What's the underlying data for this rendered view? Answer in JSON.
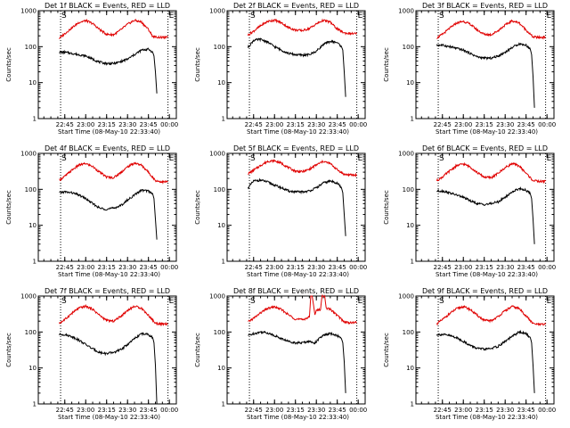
{
  "chart_data": [
    {
      "type": "line",
      "title": "Det 1f BLACK = Events, RED = LLD",
      "ylabel": "Counts/sec",
      "xlabel": "Start Time (08-May-10 22:33:40)",
      "x_ticks": [
        "22:45",
        "23:00",
        "23:15",
        "23:30",
        "23:45",
        "00:00"
      ],
      "y_ticks": [
        "1",
        "10",
        "100",
        "1000"
      ],
      "ylim": [
        1,
        1000
      ],
      "y_scale": "log",
      "markers": [
        "S",
        "E"
      ],
      "colors": {
        "events": "#000000",
        "lld": "#e00000"
      },
      "series": [
        {
          "key": "lld",
          "x": [
            "22:41",
            "22:45",
            "22:50",
            "22:55",
            "23:00",
            "23:05",
            "23:10",
            "23:15",
            "23:20",
            "23:25",
            "23:30",
            "23:35",
            "23:40",
            "23:45",
            "23:48",
            "23:50",
            "23:55",
            "23:59"
          ],
          "values": [
            170,
            230,
            330,
            470,
            530,
            440,
            300,
            220,
            215,
            290,
            420,
            540,
            480,
            300,
            195,
            185,
            180,
            182
          ]
        },
        {
          "key": "events",
          "x": [
            "22:41",
            "22:45",
            "22:50",
            "22:55",
            "23:00",
            "23:05",
            "23:10",
            "23:15",
            "23:20",
            "23:25",
            "23:30",
            "23:35",
            "23:40",
            "23:45",
            "23:48",
            "23:49",
            "23:50",
            "23:51"
          ],
          "values": [
            70,
            70,
            65,
            60,
            55,
            45,
            37,
            34,
            34,
            38,
            45,
            60,
            80,
            85,
            70,
            55,
            20,
            5
          ]
        }
      ]
    },
    {
      "type": "line",
      "title": "Det 2f BLACK = Events, RED = LLD",
      "ylabel": "Counts/sec",
      "xlabel": "Start Time (08-May-10 22:33:40)",
      "x_ticks": [
        "22:45",
        "23:00",
        "23:15",
        "23:30",
        "23:45",
        "00:00"
      ],
      "y_ticks": [
        "1",
        "10",
        "100",
        "1000"
      ],
      "ylim": [
        1,
        1000
      ],
      "y_scale": "log",
      "markers": [
        "S",
        "E"
      ],
      "colors": {
        "events": "#000000",
        "lld": "#e00000"
      },
      "series": [
        {
          "key": "lld",
          "x": [
            "22:41",
            "22:45",
            "22:50",
            "22:55",
            "23:00",
            "23:05",
            "23:10",
            "23:15",
            "23:20",
            "23:25",
            "23:30",
            "23:35",
            "23:40",
            "23:45",
            "23:50",
            "23:55",
            "23:59"
          ],
          "values": [
            210,
            270,
            380,
            500,
            550,
            460,
            340,
            290,
            280,
            320,
            430,
            540,
            480,
            310,
            240,
            230,
            230
          ]
        },
        {
          "key": "events",
          "x": [
            "22:41",
            "22:45",
            "22:50",
            "22:55",
            "23:00",
            "23:05",
            "23:10",
            "23:15",
            "23:20",
            "23:25",
            "23:30",
            "23:35",
            "23:40",
            "23:45",
            "23:48",
            "23:49",
            "23:50",
            "23:51"
          ],
          "values": [
            95,
            150,
            160,
            135,
            100,
            80,
            65,
            60,
            58,
            60,
            75,
            115,
            140,
            130,
            100,
            80,
            20,
            4
          ]
        }
      ]
    },
    {
      "type": "line",
      "title": "Det 3f BLACK = Events, RED = LLD",
      "ylabel": "Counts/sec",
      "xlabel": "Start Time (08-May-10 22:33:40)",
      "x_ticks": [
        "22:45",
        "23:00",
        "23:15",
        "23:30",
        "23:45",
        "00:00"
      ],
      "y_ticks": [
        "1",
        "10",
        "100",
        "1000"
      ],
      "ylim": [
        1,
        1000
      ],
      "y_scale": "log",
      "markers": [
        "S",
        "E"
      ],
      "colors": {
        "events": "#000000",
        "lld": "#e00000"
      },
      "series": [
        {
          "key": "lld",
          "x": [
            "22:41",
            "22:45",
            "22:50",
            "22:55",
            "23:00",
            "23:05",
            "23:10",
            "23:15",
            "23:20",
            "23:25",
            "23:30",
            "23:35",
            "23:40",
            "23:45",
            "23:50",
            "23:55",
            "23:59"
          ],
          "values": [
            175,
            220,
            320,
            450,
            510,
            420,
            290,
            220,
            215,
            280,
            400,
            520,
            460,
            290,
            185,
            180,
            185
          ]
        },
        {
          "key": "events",
          "x": [
            "22:41",
            "22:45",
            "22:50",
            "22:55",
            "23:00",
            "23:05",
            "23:10",
            "23:15",
            "23:20",
            "23:25",
            "23:30",
            "23:35",
            "23:40",
            "23:45",
            "23:48",
            "23:49",
            "23:50",
            "23:51"
          ],
          "values": [
            110,
            110,
            100,
            90,
            80,
            65,
            52,
            48,
            48,
            55,
            70,
            95,
            120,
            110,
            85,
            60,
            15,
            2
          ]
        }
      ]
    },
    {
      "type": "line",
      "title": "Det 4f BLACK = Events, RED = LLD",
      "ylabel": "Counts/sec",
      "xlabel": "Start Time (08-May-10 22:33:40)",
      "x_ticks": [
        "22:45",
        "23:00",
        "23:15",
        "23:30",
        "23:45",
        "00:00"
      ],
      "y_ticks": [
        "1",
        "10",
        "100",
        "1000"
      ],
      "ylim": [
        1,
        1000
      ],
      "y_scale": "log",
      "markers": [
        "S",
        "E"
      ],
      "colors": {
        "events": "#000000",
        "lld": "#e00000"
      },
      "series": [
        {
          "key": "lld",
          "x": [
            "22:41",
            "22:45",
            "22:50",
            "22:55",
            "23:00",
            "23:05",
            "23:10",
            "23:15",
            "23:20",
            "23:25",
            "23:30",
            "23:35",
            "23:40",
            "23:45",
            "23:50",
            "23:55",
            "23:59"
          ],
          "values": [
            180,
            230,
            340,
            470,
            520,
            430,
            300,
            220,
            210,
            290,
            420,
            540,
            470,
            300,
            175,
            160,
            165
          ]
        },
        {
          "key": "events",
          "x": [
            "22:41",
            "22:45",
            "22:50",
            "22:55",
            "23:00",
            "23:05",
            "23:10",
            "23:15",
            "23:20",
            "23:25",
            "23:30",
            "23:35",
            "23:40",
            "23:45",
            "23:48",
            "23:49",
            "23:50",
            "23:51"
          ],
          "values": [
            80,
            85,
            80,
            70,
            55,
            40,
            30,
            28,
            30,
            35,
            50,
            70,
            95,
            90,
            75,
            55,
            15,
            4
          ]
        }
      ]
    },
    {
      "type": "line",
      "title": "Det 5f BLACK = Events, RED = LLD",
      "ylabel": "Counts/sec",
      "xlabel": "Start Time (08-May-10 22:33:40)",
      "x_ticks": [
        "22:45",
        "23:00",
        "23:15",
        "23:30",
        "23:45",
        "00:00"
      ],
      "y_ticks": [
        "1",
        "10",
        "100",
        "1000"
      ],
      "ylim": [
        1,
        1000
      ],
      "y_scale": "log",
      "markers": [
        "S",
        "E"
      ],
      "colors": {
        "events": "#000000",
        "lld": "#e00000"
      },
      "series": [
        {
          "key": "lld",
          "x": [
            "22:41",
            "22:45",
            "22:50",
            "22:55",
            "23:00",
            "23:05",
            "23:10",
            "23:15",
            "23:20",
            "23:25",
            "23:30",
            "23:35",
            "23:40",
            "23:45",
            "23:50",
            "23:55",
            "23:59"
          ],
          "values": [
            270,
            340,
            460,
            600,
            620,
            530,
            400,
            320,
            310,
            360,
            480,
            600,
            520,
            350,
            260,
            250,
            250
          ]
        },
        {
          "key": "events",
          "x": [
            "22:41",
            "22:45",
            "22:50",
            "22:55",
            "23:00",
            "23:05",
            "23:10",
            "23:15",
            "23:20",
            "23:25",
            "23:30",
            "23:35",
            "23:40",
            "23:45",
            "23:48",
            "23:49",
            "23:50",
            "23:51"
          ],
          "values": [
            110,
            170,
            180,
            160,
            130,
            110,
            90,
            85,
            85,
            90,
            110,
            150,
            170,
            150,
            110,
            80,
            20,
            5
          ]
        }
      ]
    },
    {
      "type": "line",
      "title": "Det 6f BLACK = Events, RED = LLD",
      "ylabel": "Counts/sec",
      "xlabel": "Start Time (08-May-10 22:33:40)",
      "x_ticks": [
        "22:45",
        "23:00",
        "23:15",
        "23:30",
        "23:45",
        "00:00"
      ],
      "y_ticks": [
        "1",
        "10",
        "100",
        "1000"
      ],
      "ylim": [
        1,
        1000
      ],
      "y_scale": "log",
      "markers": [
        "S",
        "E"
      ],
      "colors": {
        "events": "#000000",
        "lld": "#e00000"
      },
      "series": [
        {
          "key": "lld",
          "x": [
            "22:41",
            "22:45",
            "22:50",
            "22:55",
            "23:00",
            "23:05",
            "23:10",
            "23:15",
            "23:20",
            "23:25",
            "23:30",
            "23:35",
            "23:40",
            "23:45",
            "23:50",
            "23:55",
            "23:59"
          ],
          "values": [
            175,
            220,
            320,
            450,
            510,
            420,
            290,
            220,
            210,
            280,
            400,
            520,
            450,
            280,
            175,
            165,
            170
          ]
        },
        {
          "key": "events",
          "x": [
            "22:41",
            "22:45",
            "22:50",
            "22:55",
            "23:00",
            "23:05",
            "23:10",
            "23:15",
            "23:20",
            "23:25",
            "23:30",
            "23:35",
            "23:40",
            "23:45",
            "23:48",
            "23:49",
            "23:50",
            "23:51"
          ],
          "values": [
            90,
            90,
            80,
            70,
            60,
            48,
            40,
            38,
            40,
            45,
            60,
            85,
            105,
            95,
            75,
            55,
            15,
            3
          ]
        }
      ]
    },
    {
      "type": "line",
      "title": "Det 7f BLACK = Events, RED = LLD",
      "ylabel": "Counts/sec",
      "xlabel": "Start Time (08-May-10 22:33:40)",
      "x_ticks": [
        "22:45",
        "23:00",
        "23:15",
        "23:30",
        "23:45",
        "00:00"
      ],
      "y_ticks": [
        "1",
        "10",
        "100",
        "1000"
      ],
      "ylim": [
        1,
        1000
      ],
      "y_scale": "log",
      "markers": [
        "S",
        "E"
      ],
      "colors": {
        "events": "#000000",
        "lld": "#e00000"
      },
      "series": [
        {
          "key": "lld",
          "x": [
            "22:41",
            "22:45",
            "22:50",
            "22:55",
            "23:00",
            "23:05",
            "23:10",
            "23:15",
            "23:20",
            "23:25",
            "23:30",
            "23:35",
            "23:40",
            "23:45",
            "23:50",
            "23:55",
            "23:59"
          ],
          "values": [
            175,
            220,
            330,
            460,
            520,
            430,
            290,
            210,
            200,
            270,
            400,
            520,
            460,
            290,
            175,
            165,
            170
          ]
        },
        {
          "key": "events",
          "x": [
            "22:41",
            "22:45",
            "22:50",
            "22:55",
            "23:00",
            "23:05",
            "23:10",
            "23:15",
            "23:20",
            "23:25",
            "23:30",
            "23:35",
            "23:40",
            "23:45",
            "23:48",
            "23:49",
            "23:50",
            "23:51"
          ],
          "values": [
            85,
            85,
            75,
            60,
            45,
            34,
            27,
            25,
            27,
            32,
            45,
            65,
            90,
            85,
            70,
            50,
            12,
            1
          ]
        }
      ]
    },
    {
      "type": "line",
      "title": "Det 8f BLACK = Events, RED = LLD",
      "ylabel": "Counts/sec",
      "xlabel": "Start Time (08-May-10 22:33:40)",
      "x_ticks": [
        "22:45",
        "23:00",
        "23:15",
        "23:30",
        "23:45",
        "00:00"
      ],
      "y_ticks": [
        "1",
        "10",
        "100",
        "1000"
      ],
      "ylim": [
        1,
        1000
      ],
      "y_scale": "log",
      "markers": [
        "S",
        "E"
      ],
      "colors": {
        "events": "#000000",
        "lld": "#e00000"
      },
      "series": [
        {
          "key": "lld",
          "x": [
            "22:41",
            "22:45",
            "22:50",
            "22:55",
            "23:00",
            "23:05",
            "23:10",
            "23:15",
            "23:20",
            "23:25",
            "23:26",
            "23:27",
            "23:29",
            "23:30",
            "23:33",
            "23:34",
            "23:36",
            "23:37",
            "23:40",
            "23:45",
            "23:50",
            "23:55",
            "23:59"
          ],
          "values": [
            190,
            240,
            340,
            450,
            500,
            420,
            300,
            230,
            220,
            260,
            1000,
            1000,
            300,
            400,
            420,
            1000,
            1000,
            450,
            430,
            290,
            190,
            180,
            185
          ]
        },
        {
          "key": "events",
          "x": [
            "22:41",
            "22:45",
            "22:50",
            "22:55",
            "23:00",
            "23:05",
            "23:10",
            "23:15",
            "23:20",
            "23:24",
            "23:29",
            "23:32",
            "23:35",
            "23:40",
            "23:45",
            "23:48",
            "23:49",
            "23:50",
            "23:51"
          ],
          "values": [
            80,
            90,
            100,
            95,
            80,
            65,
            55,
            50,
            50,
            55,
            50,
            65,
            80,
            90,
            80,
            65,
            50,
            15,
            2
          ]
        }
      ]
    },
    {
      "type": "line",
      "title": "Det 9f BLACK = Events, RED = LLD",
      "ylabel": "Counts/sec",
      "xlabel": "Start Time (08-May-10 22:33:40)",
      "x_ticks": [
        "22:45",
        "23:00",
        "23:15",
        "23:30",
        "23:45",
        "00:00"
      ],
      "y_ticks": [
        "1",
        "10",
        "100",
        "1000"
      ],
      "ylim": [
        1,
        1000
      ],
      "y_scale": "log",
      "markers": [
        "S",
        "E"
      ],
      "colors": {
        "events": "#000000",
        "lld": "#e00000"
      },
      "series": [
        {
          "key": "lld",
          "x": [
            "22:41",
            "22:45",
            "22:50",
            "22:55",
            "23:00",
            "23:05",
            "23:10",
            "23:15",
            "23:20",
            "23:25",
            "23:30",
            "23:35",
            "23:40",
            "23:45",
            "23:50",
            "23:55",
            "23:59"
          ],
          "values": [
            170,
            220,
            320,
            440,
            510,
            420,
            290,
            210,
            205,
            270,
            390,
            510,
            450,
            280,
            170,
            160,
            165
          ]
        },
        {
          "key": "events",
          "x": [
            "22:41",
            "22:45",
            "22:50",
            "22:55",
            "23:00",
            "23:05",
            "23:10",
            "23:15",
            "23:20",
            "23:25",
            "23:30",
            "23:35",
            "23:40",
            "23:45",
            "23:48",
            "23:49",
            "23:50",
            "23:51"
          ],
          "values": [
            85,
            85,
            80,
            70,
            55,
            42,
            35,
            33,
            35,
            40,
            55,
            75,
            100,
            90,
            70,
            50,
            12,
            2
          ]
        }
      ]
    }
  ]
}
